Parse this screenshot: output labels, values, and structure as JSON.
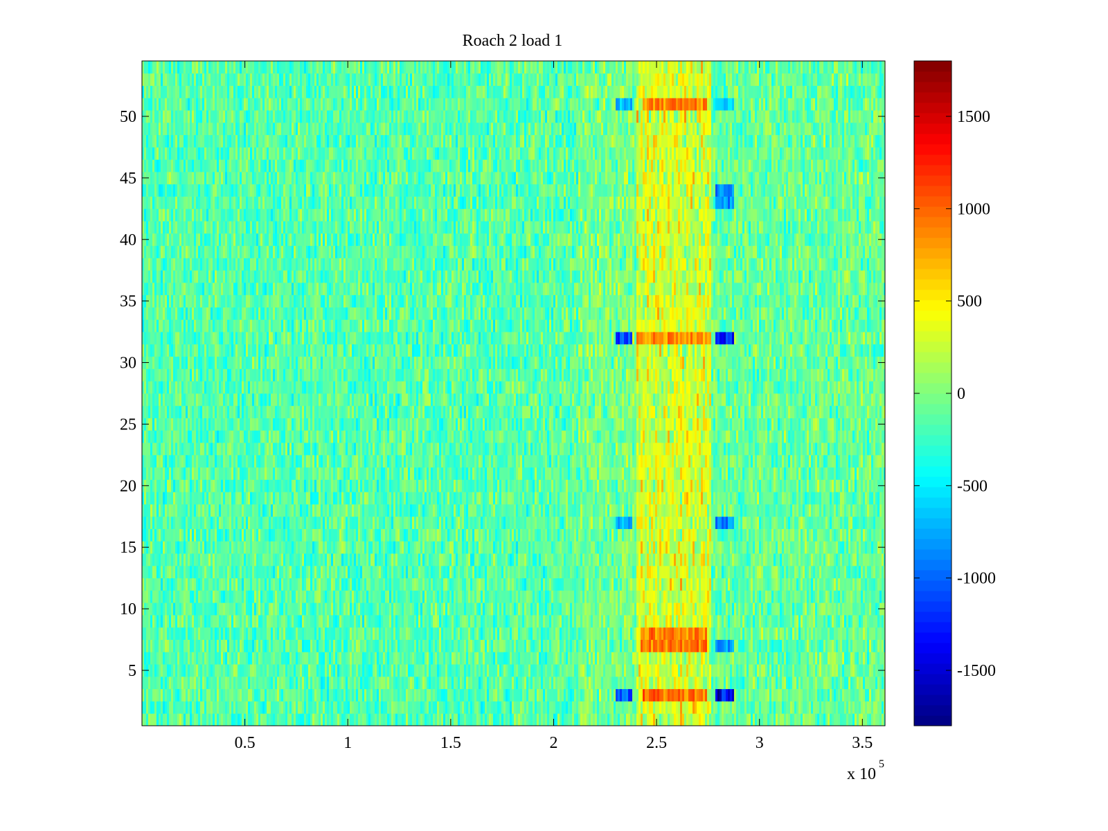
{
  "chart_data": {
    "type": "heatmap",
    "title": "Roach 2 load 1",
    "xlabel": "",
    "ylabel": "",
    "x_multiplier_label": "x 10",
    "x_multiplier_exponent": "5",
    "x_range": [
      0,
      361000
    ],
    "y_range": [
      0.5,
      54.5
    ],
    "rows": 54,
    "x_ticks": [
      {
        "value": 0.5,
        "label": "0.5"
      },
      {
        "value": 1,
        "label": "1"
      },
      {
        "value": 1.5,
        "label": "1.5"
      },
      {
        "value": 2,
        "label": "2"
      },
      {
        "value": 2.5,
        "label": "2.5"
      },
      {
        "value": 3,
        "label": "3"
      },
      {
        "value": 3.5,
        "label": "3.5"
      }
    ],
    "y_ticks": [
      {
        "value": 5,
        "label": "5"
      },
      {
        "value": 10,
        "label": "10"
      },
      {
        "value": 15,
        "label": "15"
      },
      {
        "value": 20,
        "label": "20"
      },
      {
        "value": 25,
        "label": "25"
      },
      {
        "value": 30,
        "label": "30"
      },
      {
        "value": 35,
        "label": "35"
      },
      {
        "value": 40,
        "label": "40"
      },
      {
        "value": 45,
        "label": "45"
      },
      {
        "value": 50,
        "label": "50"
      }
    ],
    "colorbar": {
      "colormap": "jet",
      "clim": [
        -1800,
        1800
      ],
      "ticks": [
        {
          "value": 1500,
          "label": "1500"
        },
        {
          "value": 1000,
          "label": "1000"
        },
        {
          "value": 500,
          "label": "500"
        },
        {
          "value": 0,
          "label": "0"
        },
        {
          "value": -500,
          "label": "-500"
        },
        {
          "value": -1000,
          "label": "-1000"
        },
        {
          "value": -1500,
          "label": "-1500"
        }
      ]
    },
    "baseline_value": -150,
    "noise_amplitude": 250,
    "features": [
      {
        "kind": "band",
        "x_start": 240000,
        "x_end": 277000,
        "value": 450
      },
      {
        "kind": "band",
        "x_start": 212000,
        "x_end": 240000,
        "value": 120
      },
      {
        "kind": "band",
        "x_start": 277000,
        "x_end": 361000,
        "value": 60
      },
      {
        "kind": "patch",
        "rows": [
          32
        ],
        "x_start": 230000,
        "x_end": 238000,
        "value": -1100
      },
      {
        "kind": "patch",
        "rows": [
          32
        ],
        "x_start": 279000,
        "x_end": 288000,
        "value": -1300
      },
      {
        "kind": "patch",
        "rows": [
          32
        ],
        "x_start": 240000,
        "x_end": 277000,
        "value": 900
      },
      {
        "kind": "patch",
        "rows": [
          3
        ],
        "x_start": 230000,
        "x_end": 238000,
        "value": -1200
      },
      {
        "kind": "patch",
        "rows": [
          3
        ],
        "x_start": 279000,
        "x_end": 288000,
        "value": -1500
      },
      {
        "kind": "patch",
        "rows": [
          3
        ],
        "x_start": 243000,
        "x_end": 275000,
        "value": 1000
      },
      {
        "kind": "patch",
        "rows": [
          7,
          8
        ],
        "x_start": 242000,
        "x_end": 275000,
        "value": 950
      },
      {
        "kind": "patch",
        "rows": [
          7
        ],
        "x_start": 279000,
        "x_end": 288000,
        "value": -900
      },
      {
        "kind": "patch",
        "rows": [
          17
        ],
        "x_start": 230000,
        "x_end": 238000,
        "value": -800
      },
      {
        "kind": "patch",
        "rows": [
          17
        ],
        "x_start": 279000,
        "x_end": 288000,
        "value": -900
      },
      {
        "kind": "patch",
        "rows": [
          43,
          44
        ],
        "x_start": 279000,
        "x_end": 288000,
        "value": -900
      },
      {
        "kind": "patch",
        "rows": [
          51
        ],
        "x_start": 230000,
        "x_end": 238000,
        "value": -700
      },
      {
        "kind": "patch",
        "rows": [
          51
        ],
        "x_start": 279000,
        "x_end": 288000,
        "value": -700
      },
      {
        "kind": "patch",
        "rows": [
          51
        ],
        "x_start": 243000,
        "x_end": 275000,
        "value": 900
      }
    ]
  }
}
